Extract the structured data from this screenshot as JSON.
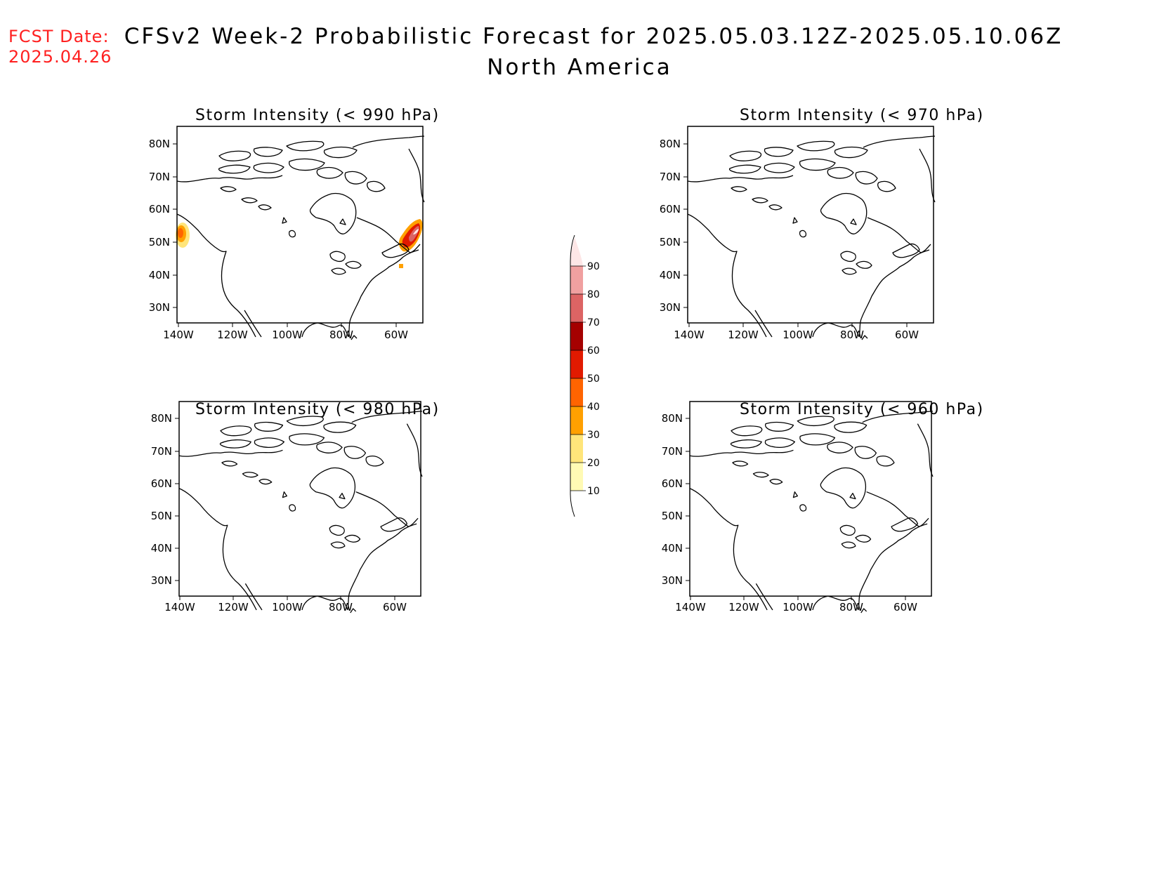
{
  "header": {
    "fcst_label": "FCST Date:",
    "fcst_date": "2025.04.26",
    "title": "CFSv2 Week-2 Probabilistic Forecast for 2025.05.03.12Z-2025.05.10.06Z",
    "subtitle": "North America"
  },
  "panels": [
    {
      "id": "p990",
      "title": "Storm Intensity (< 990 hPa)",
      "has_data": true
    },
    {
      "id": "p970",
      "title": "Storm Intensity (< 970 hPa)",
      "has_data": false
    },
    {
      "id": "p980",
      "title": "Storm Intensity (< 980 hPa)",
      "has_data": false
    },
    {
      "id": "p960",
      "title": "Storm Intensity (< 960 hPa)",
      "has_data": false
    }
  ],
  "axes": {
    "lat_labels": [
      "80N",
      "70N",
      "60N",
      "50N",
      "40N",
      "30N"
    ],
    "lon_labels": [
      "140W",
      "120W",
      "100W",
      "80W",
      "60W"
    ]
  },
  "colorbar": {
    "levels": [
      "10",
      "20",
      "30",
      "40",
      "50",
      "60",
      "70",
      "80",
      "90"
    ],
    "colors": [
      "#fffab4",
      "#ffe57a",
      "#ffa000",
      "#ff6400",
      "#e11a00",
      "#a50000",
      "#dc6464",
      "#f0a0a0",
      "#fde6e6"
    ]
  }
}
